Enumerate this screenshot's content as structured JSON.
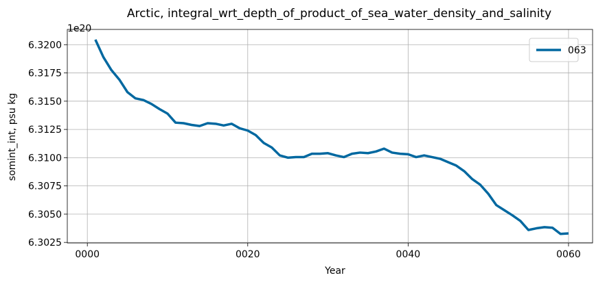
{
  "chart_data": {
    "type": "line",
    "title": "Arctic, integral_wrt_depth_of_product_of_sea_water_density_and_salinity",
    "xlabel": "Year",
    "ylabel": "somint_int, psu kg",
    "y_offset_label": "1e20",
    "xlim": [
      -2.5,
      63
    ],
    "ylim": [
      6.30245,
      6.32135
    ],
    "x_ticks": [
      0,
      20,
      40,
      60
    ],
    "x_tick_labels": [
      "0000",
      "0020",
      "0040",
      "0060"
    ],
    "y_ticks": [
      6.3025,
      6.305,
      6.3075,
      6.31,
      6.3125,
      6.315,
      6.3175,
      6.32
    ],
    "y_tick_labels": [
      "6.3025",
      "6.3050",
      "6.3075",
      "6.3100",
      "6.3125",
      "6.3150",
      "6.3175",
      "6.3200"
    ],
    "grid": true,
    "legend_position": "upper-right",
    "series": [
      {
        "name": "063",
        "color": "#0068a0",
        "x": [
          1,
          2,
          3,
          4,
          5,
          6,
          7,
          8,
          9,
          10,
          11,
          12,
          13,
          14,
          15,
          16,
          17,
          18,
          19,
          20,
          21,
          22,
          23,
          24,
          25,
          26,
          27,
          28,
          29,
          30,
          31,
          32,
          33,
          34,
          35,
          36,
          37,
          38,
          39,
          40,
          41,
          42,
          43,
          44,
          45,
          46,
          47,
          48,
          49,
          50,
          51,
          52,
          53,
          54,
          55,
          56,
          57,
          58,
          59,
          60
        ],
        "values": [
          6.32045,
          6.3189,
          6.31775,
          6.3169,
          6.3158,
          6.31525,
          6.3151,
          6.31475,
          6.3143,
          6.3139,
          6.3131,
          6.31305,
          6.3129,
          6.3128,
          6.31305,
          6.313,
          6.31285,
          6.313,
          6.3126,
          6.3124,
          6.312,
          6.3113,
          6.3109,
          6.3102,
          6.31,
          6.31005,
          6.31005,
          6.31035,
          6.31035,
          6.3104,
          6.3102,
          6.31005,
          6.31035,
          6.31045,
          6.3104,
          6.31055,
          6.3108,
          6.31045,
          6.31035,
          6.3103,
          6.31005,
          6.3102,
          6.31005,
          6.3099,
          6.3096,
          6.3093,
          6.3088,
          6.3081,
          6.3076,
          6.3068,
          6.3058,
          6.30535,
          6.3049,
          6.3044,
          6.3036,
          6.30375,
          6.30385,
          6.3038,
          6.30325,
          6.3033
        ]
      }
    ]
  }
}
